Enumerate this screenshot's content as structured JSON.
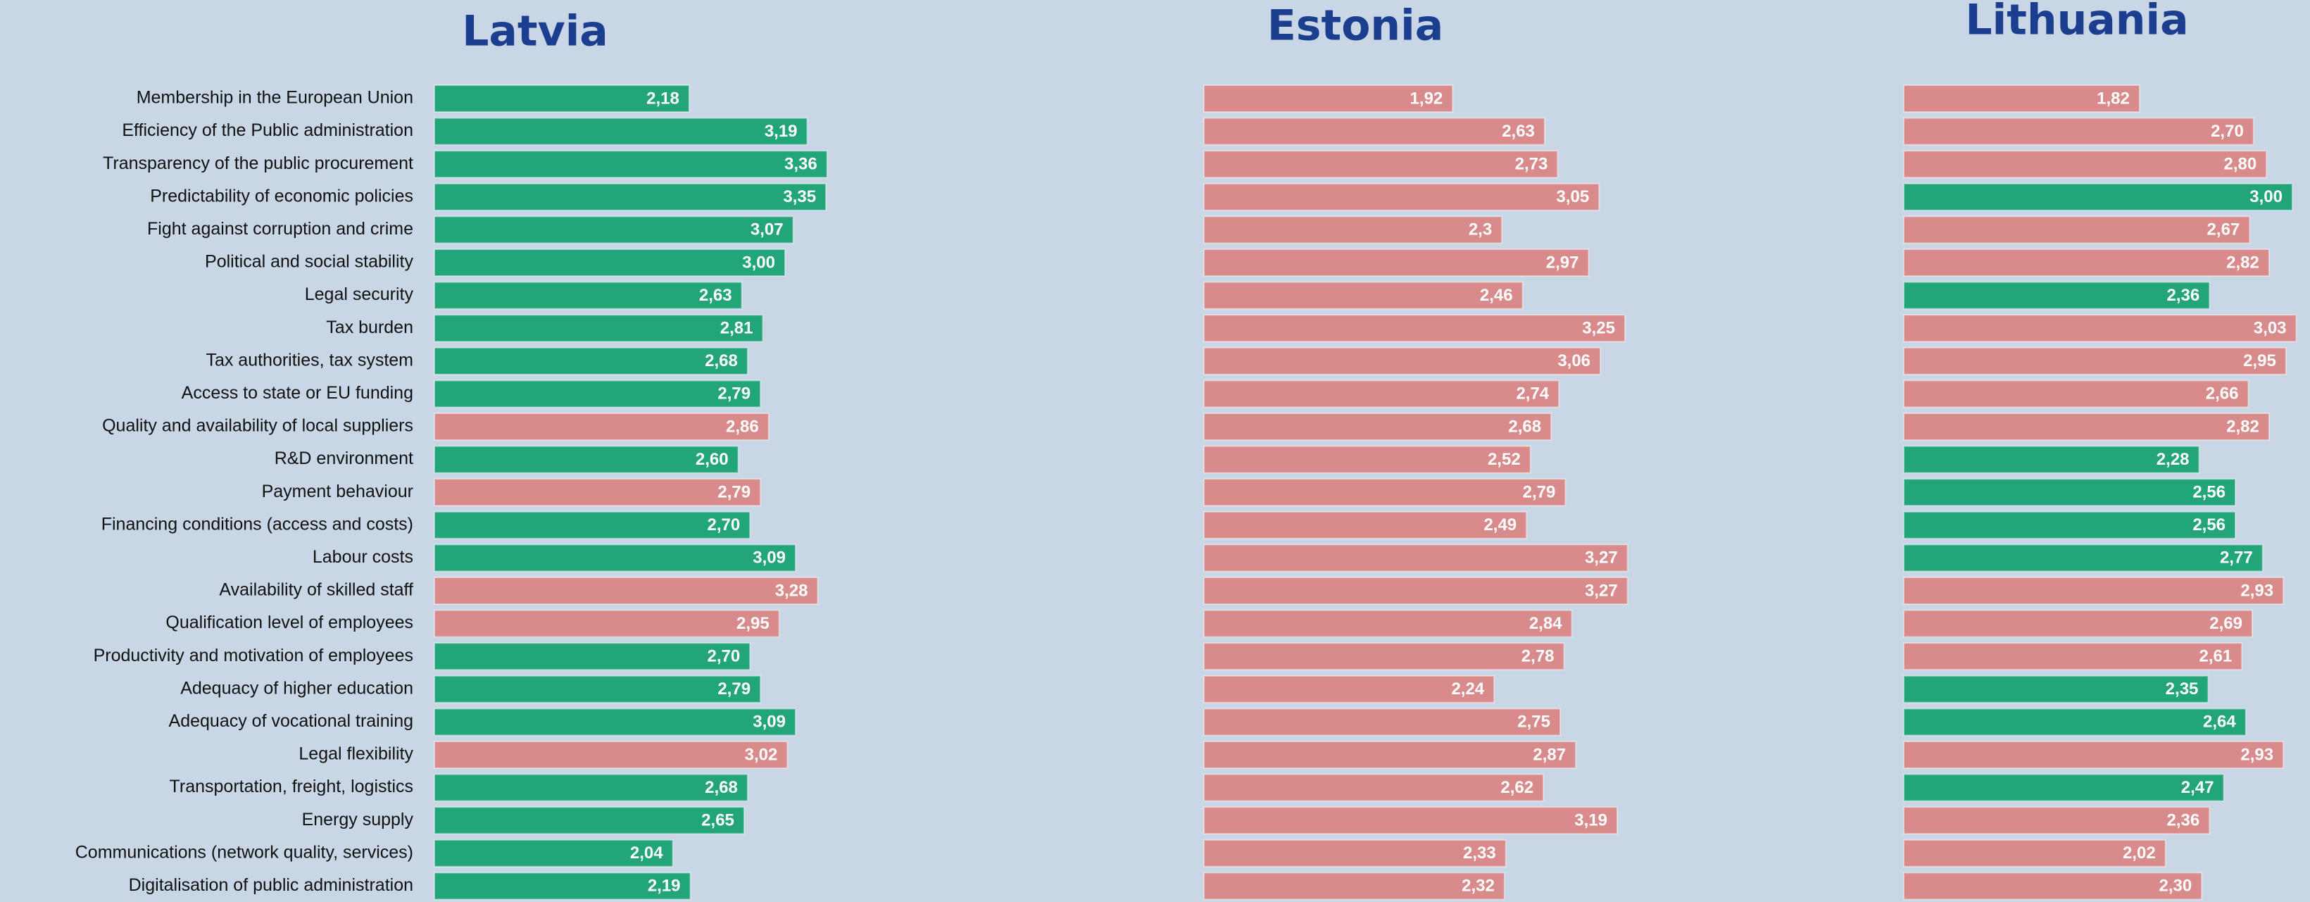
{
  "chart_data": [
    {
      "type": "bar",
      "title": "Latvia",
      "categories": [
        "Membership in the European Union",
        "Efficiency of the Public administration",
        "Transparency of the public procurement",
        "Predictability of economic policies",
        "Fight against corruption and crime",
        "Political and social stability",
        "Legal security",
        "Tax burden",
        "Tax authorities, tax system",
        "Access to state or EU funding",
        "Quality and availability of local suppliers",
        "R&D environment",
        "Payment behaviour",
        "Financing conditions (access and costs)",
        "Labour costs",
        "Availability of skilled staff",
        "Qualification level of employees",
        "Productivity and motivation of employees",
        "Adequacy of higher education",
        "Adequacy of vocational training",
        "Legal flexibility",
        "Transportation, freight, logistics",
        "Energy supply",
        "Communications (network quality, services)",
        "Digitalisation of public administration"
      ],
      "values": [
        2.18,
        3.19,
        3.36,
        3.35,
        3.07,
        3.0,
        2.63,
        2.81,
        2.68,
        2.79,
        2.86,
        2.6,
        2.79,
        2.7,
        3.09,
        3.28,
        2.95,
        2.7,
        2.79,
        3.09,
        3.02,
        2.68,
        2.65,
        2.04,
        2.19
      ],
      "value_labels": [
        "2,18",
        "3,19",
        "3,36",
        "3,35",
        "3,07",
        "3,00",
        "2,63",
        "2,81",
        "2,68",
        "2,79",
        "2,86",
        "2,60",
        "2,79",
        "2,70",
        "3,09",
        "3,28",
        "2,95",
        "2,70",
        "2,79",
        "3,09",
        "3,02",
        "2,68",
        "2,65",
        "2,04",
        "2,19"
      ],
      "colors": [
        "#23a57a",
        "#23a57a",
        "#23a57a",
        "#23a57a",
        "#23a57a",
        "#23a57a",
        "#23a57a",
        "#23a57a",
        "#23a57a",
        "#23a57a",
        "#d98a8a",
        "#23a57a",
        "#d98a8a",
        "#23a57a",
        "#23a57a",
        "#d98a8a",
        "#d98a8a",
        "#23a57a",
        "#23a57a",
        "#23a57a",
        "#d98a8a",
        "#23a57a",
        "#23a57a",
        "#23a57a",
        "#23a57a"
      ]
    },
    {
      "type": "bar",
      "title": "Estonia",
      "values": [
        1.92,
        2.63,
        2.73,
        3.05,
        2.3,
        2.97,
        2.46,
        3.25,
        3.06,
        2.74,
        2.68,
        2.52,
        2.79,
        2.49,
        3.27,
        3.27,
        2.84,
        2.78,
        2.24,
        2.75,
        2.87,
        2.62,
        3.19,
        2.33,
        2.32
      ],
      "value_labels": [
        "1,92",
        "2,63",
        "2,73",
        "3,05",
        "2,3",
        "2,97",
        "2,46",
        "3,25",
        "3,06",
        "2,74",
        "2,68",
        "2,52",
        "2,79",
        "2,49",
        "3,27",
        "3,27",
        "2,84",
        "2,78",
        "2,24",
        "2,75",
        "2,87",
        "2,62",
        "3,19",
        "2,33",
        "2,32"
      ],
      "colors": [
        "#d98a8a",
        "#d98a8a",
        "#d98a8a",
        "#d98a8a",
        "#d98a8a",
        "#d98a8a",
        "#d98a8a",
        "#d98a8a",
        "#d98a8a",
        "#d98a8a",
        "#d98a8a",
        "#d98a8a",
        "#d98a8a",
        "#d98a8a",
        "#d98a8a",
        "#d98a8a",
        "#d98a8a",
        "#d98a8a",
        "#d98a8a",
        "#d98a8a",
        "#d98a8a",
        "#d98a8a",
        "#d98a8a",
        "#d98a8a",
        "#d98a8a"
      ]
    },
    {
      "type": "bar",
      "title": "Lithuania",
      "values": [
        1.82,
        2.7,
        2.8,
        3.0,
        2.67,
        2.82,
        2.36,
        3.03,
        2.95,
        2.66,
        2.82,
        2.28,
        2.56,
        2.56,
        2.77,
        2.93,
        2.69,
        2.61,
        2.35,
        2.64,
        2.93,
        2.47,
        2.36,
        2.02,
        2.3
      ],
      "value_labels": [
        "1,82",
        "2,70",
        "2,80",
        "3,00",
        "2,67",
        "2,82",
        "2,36",
        "3,03",
        "2,95",
        "2,66",
        "2,82",
        "2,28",
        "2,56",
        "2,56",
        "2,77",
        "2,93",
        "2,69",
        "2,61",
        "2,35",
        "2,64",
        "2,93",
        "2,47",
        "2,36",
        "2,02",
        "2,30"
      ],
      "colors": [
        "#d98a8a",
        "#d98a8a",
        "#d98a8a",
        "#23a57a",
        "#d98a8a",
        "#d98a8a",
        "#23a57a",
        "#d98a8a",
        "#d98a8a",
        "#d98a8a",
        "#d98a8a",
        "#23a57a",
        "#23a57a",
        "#23a57a",
        "#23a57a",
        "#d98a8a",
        "#d98a8a",
        "#d98a8a",
        "#23a57a",
        "#23a57a",
        "#d98a8a",
        "#23a57a",
        "#d98a8a",
        "#d98a8a",
        "#d98a8a"
      ]
    }
  ]
}
